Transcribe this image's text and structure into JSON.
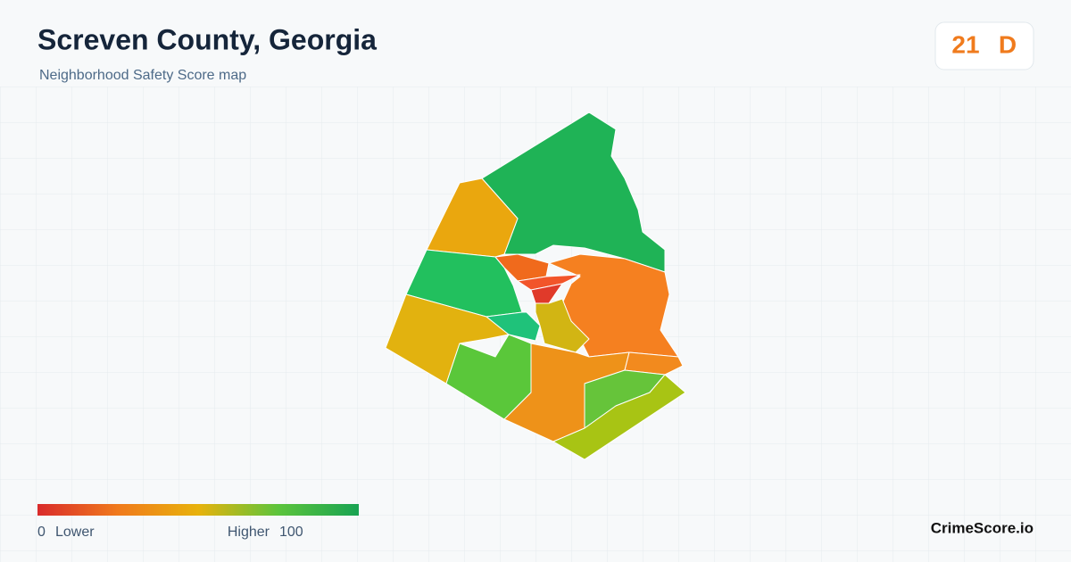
{
  "header": {
    "title": "Screven County, Georgia",
    "subtitle": "Neighborhood Safety Score map"
  },
  "score": {
    "value": "21",
    "grade": "D"
  },
  "legend": {
    "min": "0",
    "min_label": "Lower",
    "max_label": "Higher",
    "max": "100"
  },
  "brand": "CrimeScore.io"
}
